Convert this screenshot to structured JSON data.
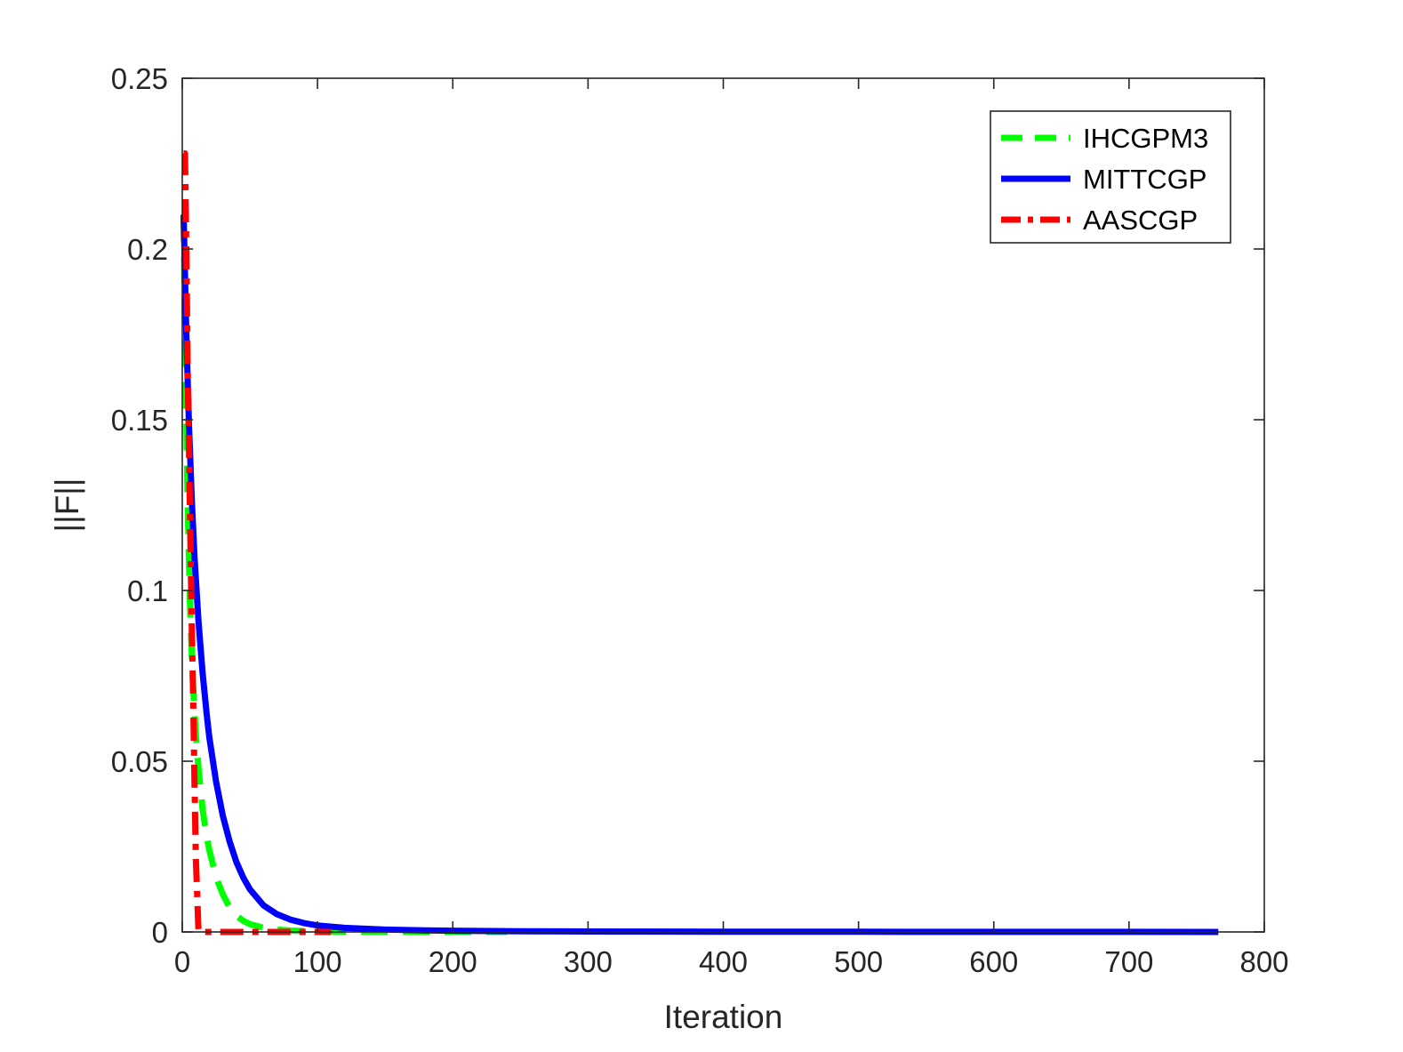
{
  "chart_data": {
    "type": "line",
    "title": "",
    "xlabel": "Iteration",
    "ylabel": "||F||",
    "xlim": [
      0,
      800
    ],
    "ylim": [
      0,
      0.25
    ],
    "xticks": [
      0,
      100,
      200,
      300,
      400,
      500,
      600,
      700,
      800
    ],
    "xtick_labels": [
      "0",
      "100",
      "200",
      "300",
      "400",
      "500",
      "600",
      "700",
      "800"
    ],
    "yticks": [
      0,
      0.05,
      0.1,
      0.15,
      0.2,
      0.25
    ],
    "ytick_labels": [
      "0",
      "0.05",
      "0.1",
      "0.15",
      "0.2",
      "0.25"
    ],
    "grid": false,
    "legend_position": "top-right",
    "series": [
      {
        "name": "IHCGPM3",
        "color": "#00ff00",
        "style": "dashed",
        "x": [
          1,
          2,
          3,
          4,
          5,
          6,
          8,
          10,
          12,
          15,
          18,
          20,
          25,
          30,
          35,
          40,
          45,
          50,
          60,
          70,
          80,
          100,
          120,
          150,
          180,
          200,
          240
        ],
        "y": [
          0.21,
          0.175,
          0.15,
          0.125,
          0.108,
          0.092,
          0.072,
          0.058,
          0.048,
          0.036,
          0.028,
          0.024,
          0.016,
          0.011,
          0.0072,
          0.0048,
          0.0033,
          0.0023,
          0.0012,
          0.0007,
          0.0004,
          0.00015,
          7e-05,
          3e-05,
          1e-05,
          5e-06,
          1e-06
        ]
      },
      {
        "name": "MITTCGP",
        "color": "#0000ff",
        "style": "solid",
        "x": [
          1,
          3,
          5,
          7,
          9,
          12,
          15,
          18,
          20,
          25,
          30,
          35,
          40,
          45,
          50,
          60,
          70,
          80,
          90,
          100,
          120,
          150,
          180,
          200,
          250,
          300,
          400,
          500,
          600,
          700,
          766
        ],
        "y": [
          0.21,
          0.175,
          0.148,
          0.127,
          0.11,
          0.091,
          0.076,
          0.064,
          0.057,
          0.044,
          0.034,
          0.0265,
          0.0205,
          0.016,
          0.0125,
          0.0078,
          0.0052,
          0.0036,
          0.0026,
          0.0019,
          0.0012,
          0.0007,
          0.00045,
          0.00035,
          0.0002,
          0.00014,
          8e-05,
          5e-05,
          3e-05,
          2e-05,
          1e-05
        ]
      },
      {
        "name": "AASCGP",
        "color": "#ff0000",
        "style": "dashdot",
        "x": [
          1,
          2,
          3,
          4,
          5,
          6,
          7,
          8,
          9,
          10,
          12,
          15,
          20,
          40,
          60,
          80,
          100,
          110
        ],
        "y": [
          0.228,
          0.228,
          0.2,
          0.165,
          0.14,
          0.115,
          0.09,
          0.07,
          0.045,
          0.022,
          0.0002,
          0.0,
          0.0,
          0.0,
          0.0,
          0.0,
          0.0,
          0.0
        ]
      }
    ]
  }
}
